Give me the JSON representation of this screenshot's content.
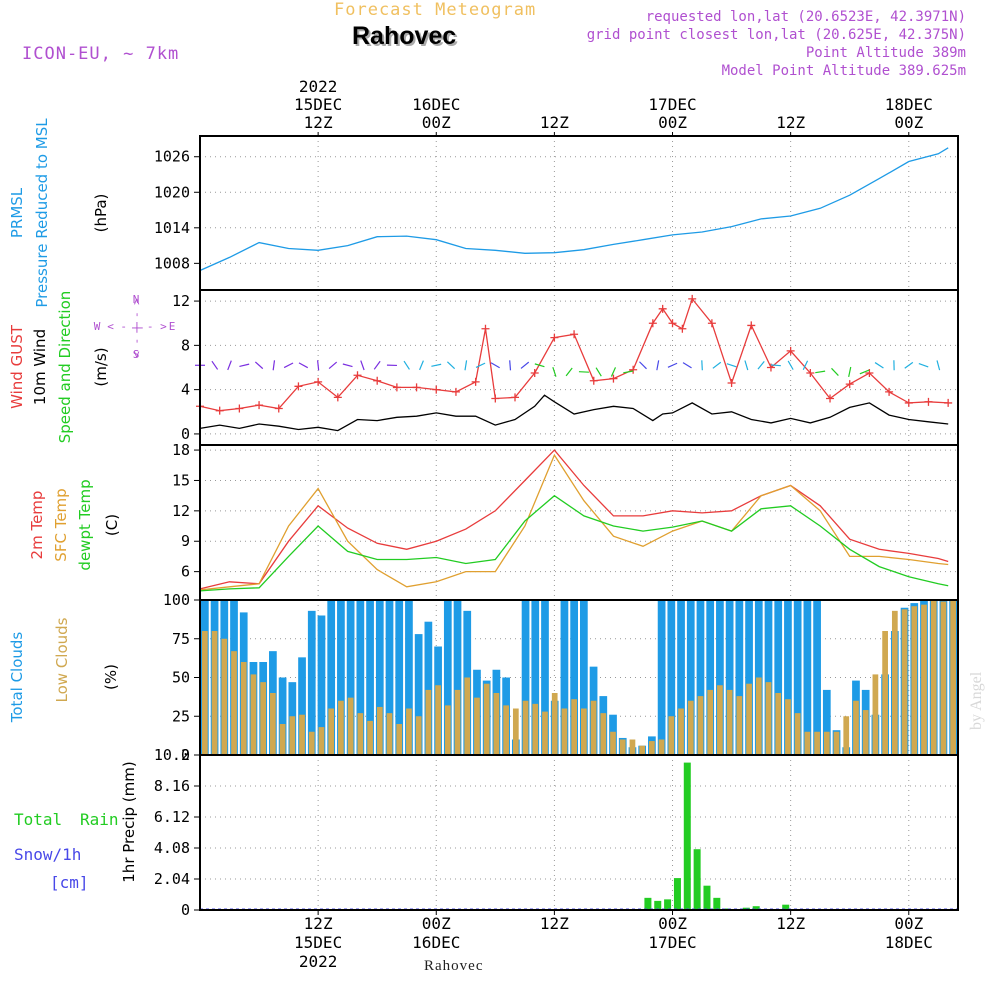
{
  "header": {
    "super_title": "Forecast Meteogram",
    "location": "Rahovec",
    "model": "ICON-EU, ~ 7km",
    "requested": "requested lon,lat (20.6523E, 42.3971N)",
    "grid_point": "grid point closest lon,lat (20.625E, 42.375N)",
    "point_altitude": "Point Altitude 389m",
    "model_altitude": "Model Point Altitude 389.625m"
  },
  "footer": {
    "location": "Rahovec",
    "watermark": "by Angel"
  },
  "time_axis": {
    "top_ticks": [
      {
        "t": 12,
        "lines": [
          "2022",
          "15DEC",
          "12Z"
        ]
      },
      {
        "t": 24,
        "lines": [
          "16DEC",
          "00Z"
        ]
      },
      {
        "t": 36,
        "lines": [
          "12Z"
        ]
      },
      {
        "t": 48,
        "lines": [
          "17DEC",
          "00Z"
        ]
      },
      {
        "t": 60,
        "lines": [
          "12Z"
        ]
      },
      {
        "t": 72,
        "lines": [
          "18DEC",
          "00Z"
        ]
      }
    ],
    "bottom_ticks": [
      {
        "t": 12,
        "lines": [
          "12Z",
          "15DEC",
          "2022"
        ]
      },
      {
        "t": 24,
        "lines": [
          "00Z",
          "16DEC"
        ]
      },
      {
        "t": 36,
        "lines": [
          "12Z"
        ]
      },
      {
        "t": 48,
        "lines": [
          "00Z",
          "17DEC"
        ]
      },
      {
        "t": 60,
        "lines": [
          "12Z"
        ]
      },
      {
        "t": 72,
        "lines": [
          "00Z",
          "18DEC"
        ]
      }
    ]
  },
  "colors": {
    "pressure": "#1e9be6",
    "gust": "#e83c3c",
    "wind": "#000000",
    "temp2m": "#e83c3c",
    "sfctemp": "#e0a030",
    "dewpt": "#22cc22",
    "total_clouds": "#1e9be6",
    "low_clouds": "#d0a850",
    "rain": "#22cc22",
    "snow": "#4848e8",
    "header_orange": "#f0c060",
    "header_purple": "#b050d0",
    "compass": "#b050d0"
  },
  "panel_labels": {
    "pressure": {
      "l1": "PRMSL",
      "l2": "Pressure Reduced to MSL",
      "unit": "(hPa)"
    },
    "wind": {
      "l1": "Wind GUST",
      "l2": "10m Wind",
      "l3": "Speed and Direction",
      "unit": "(m/s)",
      "compass_n": "N",
      "compass_s": "S",
      "compass_w": "W",
      "compass_e": "E",
      "compass_ns": "< - | - >",
      "compass_we": "< - | - >"
    },
    "temp": {
      "l1": "2m Temp",
      "l2": "SFC Temp",
      "l3": "dewpt Temp",
      "unit": "(C)"
    },
    "clouds": {
      "l1": "Total Clouds",
      "l2": "Low Clouds",
      "unit": "(%)"
    },
    "precip": {
      "l1": "Total",
      "l1b": "Rain",
      "l2": "Snow/1h",
      "l3": "[cm]",
      "unit": "1hr Precip (mm)"
    }
  },
  "chart_data": [
    {
      "type": "line",
      "title": "PRMSL Pressure Reduced to MSL",
      "ylabel": "(hPa)",
      "ylim": [
        1003.5,
        1029.5
      ],
      "yticks": [
        "1008",
        "1014",
        "1020",
        "1026"
      ],
      "xlim": [
        0,
        77
      ],
      "series": [
        {
          "name": "PRMSL",
          "x": [
            0,
            3,
            6,
            9,
            12,
            15,
            18,
            21,
            24,
            27,
            30,
            33,
            36,
            39,
            42,
            45,
            48,
            51,
            54,
            57,
            60,
            63,
            66,
            69,
            72,
            75,
            76
          ],
          "values": [
            1006.8,
            1009,
            1011.5,
            1010.5,
            1010.2,
            1011,
            1012.5,
            1012.6,
            1012,
            1010.5,
            1010.2,
            1009.7,
            1009.8,
            1010.3,
            1011.2,
            1012,
            1012.8,
            1013.3,
            1014.2,
            1015.5,
            1016,
            1017.3,
            1019.5,
            1022.3,
            1025.2,
            1026.5,
            1027.5
          ]
        }
      ]
    },
    {
      "type": "line",
      "title": "Wind GUST / 10m Wind Speed and Direction",
      "ylabel": "(m/s)",
      "ylim": [
        -1,
        13
      ],
      "yticks": [
        "0",
        "4",
        "8",
        "12"
      ],
      "xlim": [
        0,
        77
      ],
      "series": [
        {
          "name": "Wind GUST",
          "x": [
            0,
            2,
            4,
            6,
            8,
            10,
            12,
            14,
            16,
            18,
            20,
            22,
            24,
            26,
            28,
            29,
            30,
            32,
            34,
            36,
            38,
            40,
            42,
            44,
            46,
            47,
            48,
            49,
            50,
            52,
            54,
            56,
            58,
            60,
            62,
            64,
            66,
            68,
            70,
            72,
            74,
            76
          ],
          "values": [
            2.5,
            2.1,
            2.3,
            2.6,
            2.3,
            4.3,
            4.7,
            3.3,
            5.3,
            4.8,
            4.2,
            4.2,
            4,
            3.8,
            4.7,
            9.5,
            3.2,
            3.3,
            5.5,
            8.7,
            9,
            4.8,
            5,
            5.8,
            10,
            11.3,
            10,
            9.5,
            12.2,
            10,
            4.6,
            9.8,
            6,
            7.5,
            5.5,
            3.2,
            4.5,
            5.5,
            3.8,
            2.8,
            2.9,
            2.8
          ]
        },
        {
          "name": "10m Wind",
          "x": [
            0,
            2,
            4,
            6,
            8,
            10,
            12,
            14,
            16,
            18,
            20,
            22,
            24,
            26,
            28,
            30,
            32,
            34,
            35,
            36,
            38,
            40,
            42,
            44,
            46,
            47,
            48,
            50,
            52,
            54,
            56,
            58,
            60,
            62,
            64,
            66,
            68,
            70,
            72,
            74,
            76
          ],
          "values": [
            0.5,
            0.8,
            0.5,
            0.9,
            0.7,
            0.4,
            0.6,
            0.3,
            1.3,
            1.2,
            1.5,
            1.6,
            1.9,
            1.6,
            1.6,
            0.8,
            1.3,
            2.5,
            3.5,
            2.9,
            1.8,
            2.2,
            2.5,
            2.3,
            1.2,
            1.8,
            1.9,
            2.8,
            1.8,
            2,
            1.3,
            1,
            1.4,
            1,
            1.5,
            2.4,
            2.8,
            1.7,
            1.3,
            1.1,
            0.9
          ]
        }
      ]
    },
    {
      "type": "line",
      "title": "2m Temp / SFC Temp / dewpt Temp",
      "ylabel": "(C)",
      "ylim": [
        3.2,
        18.5
      ],
      "yticks": [
        "6",
        "9",
        "12",
        "15",
        "18"
      ],
      "xlim": [
        0,
        77
      ],
      "series": [
        {
          "name": "2m Temp",
          "x": [
            0,
            3,
            6,
            9,
            12,
            15,
            18,
            21,
            24,
            27,
            30,
            33,
            36,
            39,
            42,
            45,
            48,
            51,
            54,
            57,
            60,
            63,
            66,
            69,
            72,
            75,
            76
          ],
          "values": [
            4.3,
            5,
            4.8,
            9,
            12.5,
            10.3,
            8.8,
            8.2,
            9,
            10.2,
            12,
            15,
            18,
            14.5,
            11.5,
            11.5,
            12,
            11.8,
            12,
            13.5,
            14.5,
            12.5,
            9.2,
            8.2,
            7.8,
            7.3,
            7
          ]
        },
        {
          "name": "SFC Temp",
          "x": [
            0,
            3,
            6,
            9,
            12,
            15,
            18,
            21,
            24,
            27,
            30,
            33,
            36,
            39,
            42,
            45,
            48,
            51,
            54,
            57,
            60,
            63,
            66,
            69,
            72,
            75,
            76
          ],
          "values": [
            4.2,
            4.5,
            4.8,
            10.5,
            14.2,
            9,
            6.2,
            4.5,
            5,
            6,
            6,
            10.5,
            17.5,
            13,
            9.5,
            8.5,
            10,
            11,
            10,
            13.5,
            14.5,
            12,
            7.5,
            7.5,
            7.2,
            6.8,
            6.7
          ]
        },
        {
          "name": "dewpt Temp",
          "x": [
            0,
            3,
            6,
            9,
            12,
            15,
            18,
            21,
            24,
            27,
            30,
            33,
            36,
            39,
            42,
            45,
            48,
            51,
            54,
            57,
            60,
            63,
            66,
            69,
            72,
            75,
            76
          ],
          "values": [
            4.1,
            4.3,
            4.4,
            7.5,
            10.5,
            8,
            7.2,
            7.2,
            7.4,
            6.8,
            7.2,
            11,
            13.5,
            11.5,
            10.5,
            10,
            10.4,
            11,
            10,
            12.2,
            12.5,
            10.5,
            8.2,
            6.5,
            5.5,
            4.8,
            4.6
          ]
        }
      ]
    },
    {
      "type": "bar",
      "title": "Total Clouds / Low Clouds",
      "ylabel": "(%)",
      "ylim": [
        0,
        100
      ],
      "yticks": [
        "0",
        "25",
        "50",
        "75",
        "100"
      ],
      "xlim": [
        0,
        77
      ],
      "series": [
        {
          "name": "Total Clouds",
          "values": [
            100,
            100,
            100,
            100,
            92,
            60,
            60,
            67,
            50,
            47,
            63,
            93,
            90,
            100,
            100,
            100,
            100,
            100,
            100,
            100,
            100,
            100,
            78,
            86,
            70,
            100,
            100,
            93,
            55,
            48,
            55,
            50,
            10,
            100,
            100,
            100,
            35,
            100,
            100,
            100,
            57,
            38,
            26,
            11,
            5,
            6,
            12,
            100,
            100,
            100,
            100,
            100,
            100,
            100,
            100,
            100,
            100,
            100,
            100,
            100,
            100,
            100,
            100,
            100,
            42,
            16,
            5,
            48,
            42,
            26,
            52,
            80,
            95,
            98,
            100,
            100,
            100,
            100
          ]
        },
        {
          "name": "Low Clouds",
          "values": [
            80,
            80,
            75,
            67,
            60,
            52,
            47,
            40,
            20,
            25,
            26,
            15,
            18,
            30,
            35,
            37,
            27,
            22,
            31,
            27,
            20,
            30,
            25,
            42,
            45,
            32,
            42,
            50,
            37,
            46,
            40,
            32,
            30,
            35,
            33,
            28,
            40,
            30,
            36,
            30,
            35,
            27,
            15,
            10,
            10,
            6,
            9,
            10,
            25,
            30,
            35,
            38,
            42,
            45,
            42,
            38,
            46,
            50,
            47,
            40,
            36,
            27,
            15,
            15,
            15,
            15,
            25,
            35,
            29,
            52,
            80,
            93,
            94,
            96,
            97,
            100,
            99,
            100
          ]
        }
      ]
    },
    {
      "type": "bar",
      "title": "1hr Precip (mm)",
      "ylabel": "1hr Precip (mm)",
      "ylim": [
        0,
        10.2
      ],
      "yticks": [
        "0",
        "2.04",
        "4.08",
        "6.12",
        "8.16",
        "10.2"
      ],
      "xlim": [
        0,
        77
      ],
      "series": [
        {
          "name": "Total Rain",
          "x": [
            45,
            46,
            47,
            48,
            49,
            50,
            51,
            52,
            53,
            55,
            56,
            59
          ],
          "values": [
            0.8,
            0.6,
            0.7,
            2.1,
            9.7,
            4.0,
            1.6,
            0.8,
            0.1,
            0.15,
            0.25,
            0.35
          ]
        }
      ]
    }
  ]
}
